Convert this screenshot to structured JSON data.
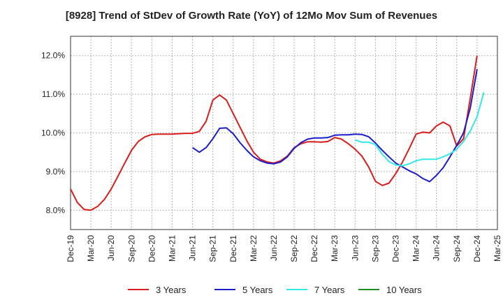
{
  "chart_data": {
    "type": "line",
    "title": "[8928]  Trend of StDev of Growth Rate (YoY) of 12Mo Mov Sum of Revenues",
    "xlabel": "",
    "ylabel": "",
    "ylim": [
      7.5,
      12.5
    ],
    "yticks": [
      8.0,
      9.0,
      10.0,
      11.0,
      12.0
    ],
    "ytick_labels": [
      "8.0%",
      "9.0%",
      "10.0%",
      "11.0%",
      "12.0%"
    ],
    "x_start": "2019-12",
    "x_end": "2025-03",
    "xtick_labels": [
      "Dec-19",
      "Mar-20",
      "Jun-20",
      "Sep-20",
      "Dec-20",
      "Mar-21",
      "Jun-21",
      "Sep-21",
      "Dec-21",
      "Mar-22",
      "Jun-22",
      "Sep-22",
      "Dec-22",
      "Mar-23",
      "Jun-23",
      "Sep-23",
      "Dec-23",
      "Mar-24",
      "Jun-24",
      "Sep-24",
      "Dec-24",
      "Mar-25"
    ],
    "grid": true,
    "legend_position": "bottom",
    "series": [
      {
        "name": "3 Years",
        "color": "#dd1c1c",
        "start_index": 0,
        "values": [
          8.55,
          8.2,
          8.02,
          8.0,
          8.1,
          8.28,
          8.55,
          8.88,
          9.22,
          9.55,
          9.78,
          9.9,
          9.96,
          9.97,
          9.97,
          9.97,
          9.98,
          9.99,
          9.99,
          10.04,
          10.3,
          10.85,
          10.98,
          10.85,
          10.5,
          10.15,
          9.8,
          9.5,
          9.32,
          9.25,
          9.22,
          9.28,
          9.4,
          9.62,
          9.72,
          9.77,
          9.77,
          9.76,
          9.78,
          9.88,
          9.84,
          9.72,
          9.58,
          9.4,
          9.12,
          8.75,
          8.64,
          8.7,
          8.95,
          9.25,
          9.6,
          9.97,
          10.02,
          10.0,
          10.18,
          10.28,
          10.18,
          9.66,
          9.85,
          10.9,
          12.0
        ]
      },
      {
        "name": "5 Years",
        "color": "#1c1ccc",
        "start_index": 18,
        "values": [
          9.62,
          9.5,
          9.62,
          9.85,
          10.12,
          10.13,
          9.98,
          9.75,
          9.55,
          9.38,
          9.28,
          9.22,
          9.2,
          9.25,
          9.38,
          9.6,
          9.75,
          9.84,
          9.87,
          9.87,
          9.88,
          9.94,
          9.95,
          9.95,
          9.97,
          9.96,
          9.9,
          9.74,
          9.55,
          9.38,
          9.22,
          9.12,
          9.02,
          8.94,
          8.82,
          8.74,
          8.9,
          9.1,
          9.38,
          9.68,
          10.0,
          10.65,
          11.65
        ]
      },
      {
        "name": "7 Years",
        "color": "#33e8e8",
        "start_index": 42,
        "values": [
          9.82,
          9.76,
          9.76,
          9.7,
          9.45,
          9.26,
          9.17,
          9.15,
          9.2,
          9.28,
          9.32,
          9.32,
          9.32,
          9.38,
          9.46,
          9.58,
          9.78,
          10.05,
          10.42,
          11.05
        ]
      },
      {
        "name": "10 Years",
        "color": "#1e8c1e",
        "start_index": 0,
        "values": []
      }
    ]
  }
}
